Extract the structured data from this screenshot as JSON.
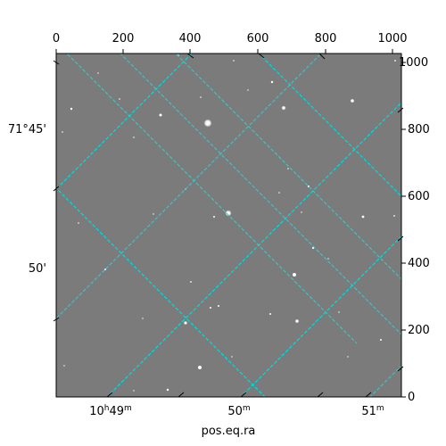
{
  "image": {
    "type": "astronomical-image",
    "background_color": "#7b7b7b",
    "star_color": "#ffffff",
    "grid_color": "#00e5e5",
    "frame_color": "#000000"
  },
  "axes": {
    "xlabel": "pos.eq.ra",
    "top_pixel_ticks": [
      "0",
      "200",
      "400",
      "600",
      "800",
      "1000"
    ],
    "right_pixel_ticks": [
      "0",
      "200",
      "400",
      "600",
      "800",
      "1000"
    ],
    "ra_ticks": [
      {
        "hours": "10",
        "minutes": "49",
        "h_unit": "h",
        "m_unit": "m"
      },
      {
        "hours": "",
        "minutes": "50",
        "h_unit": "",
        "m_unit": "m"
      },
      {
        "hours": "",
        "minutes": "51",
        "h_unit": "",
        "m_unit": "m"
      }
    ],
    "dec_ticks": [
      "71°45'",
      "50'"
    ]
  }
}
